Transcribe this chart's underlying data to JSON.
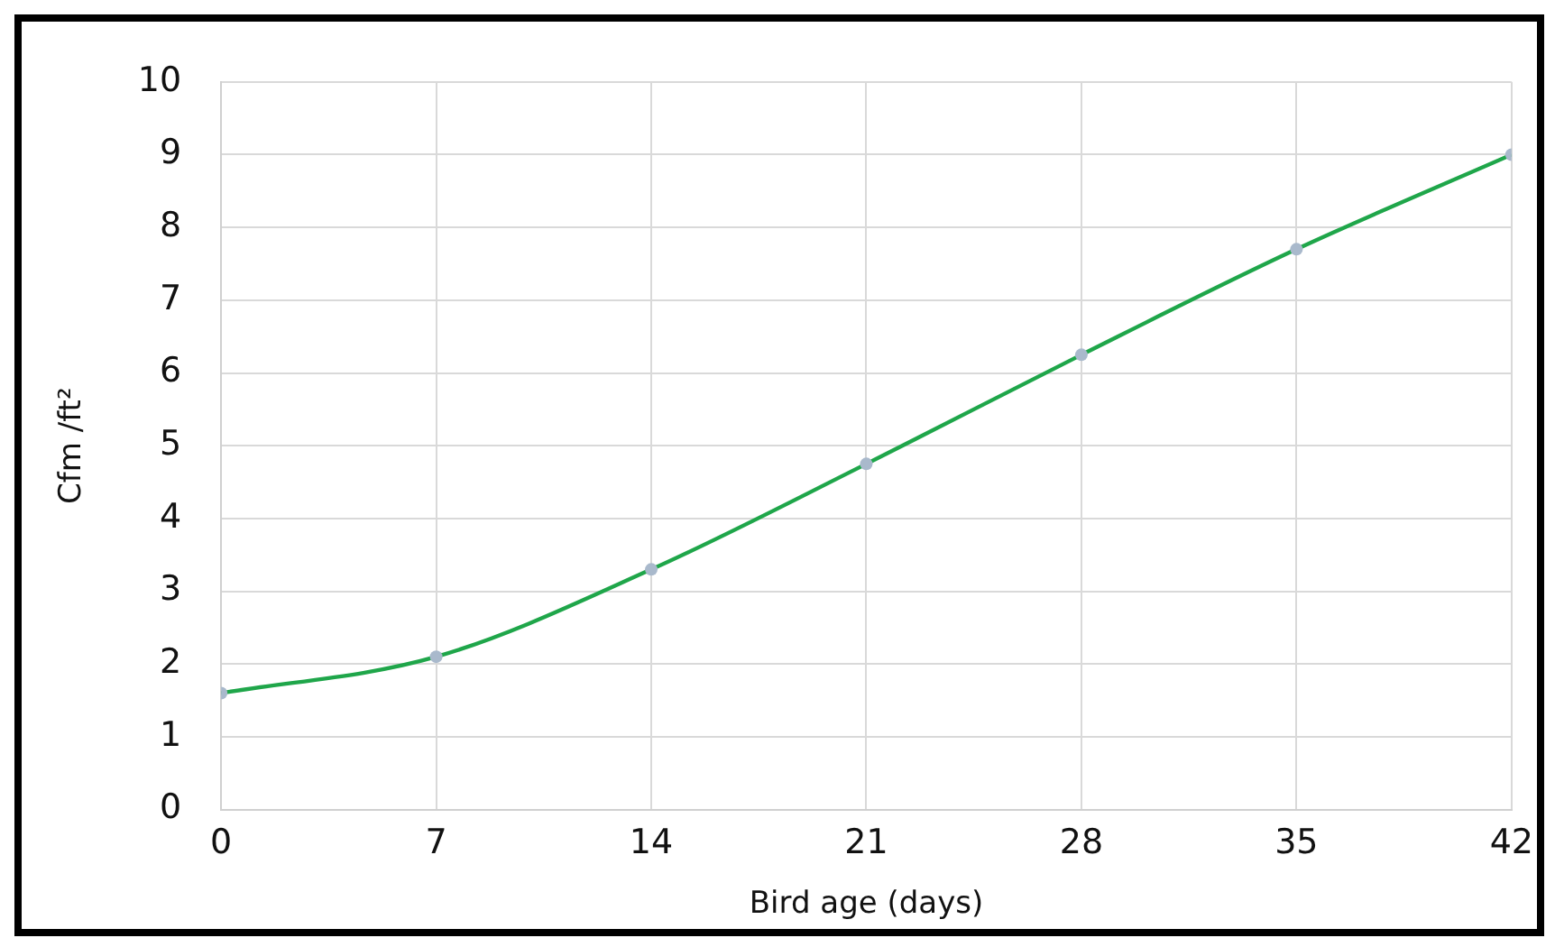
{
  "chart_data": {
    "type": "line",
    "xlabel": "Bird age (days)",
    "ylabel": "Cfm /ft²",
    "x": [
      0,
      7,
      14,
      21,
      28,
      35,
      42
    ],
    "series": [
      {
        "color": "#1fa64a",
        "values": [
          1.6,
          2.1,
          3.3,
          4.75,
          6.25,
          7.7,
          9
        ]
      }
    ],
    "xlim": [
      0,
      42
    ],
    "xticks": [
      0,
      7,
      14,
      21,
      28,
      35,
      42
    ],
    "ylim": [
      0,
      10
    ],
    "yticks": [
      0,
      1,
      2,
      3,
      4,
      5,
      6,
      7,
      8,
      9,
      10
    ],
    "grid": true,
    "marker": "circle",
    "line_style": "solid"
  }
}
